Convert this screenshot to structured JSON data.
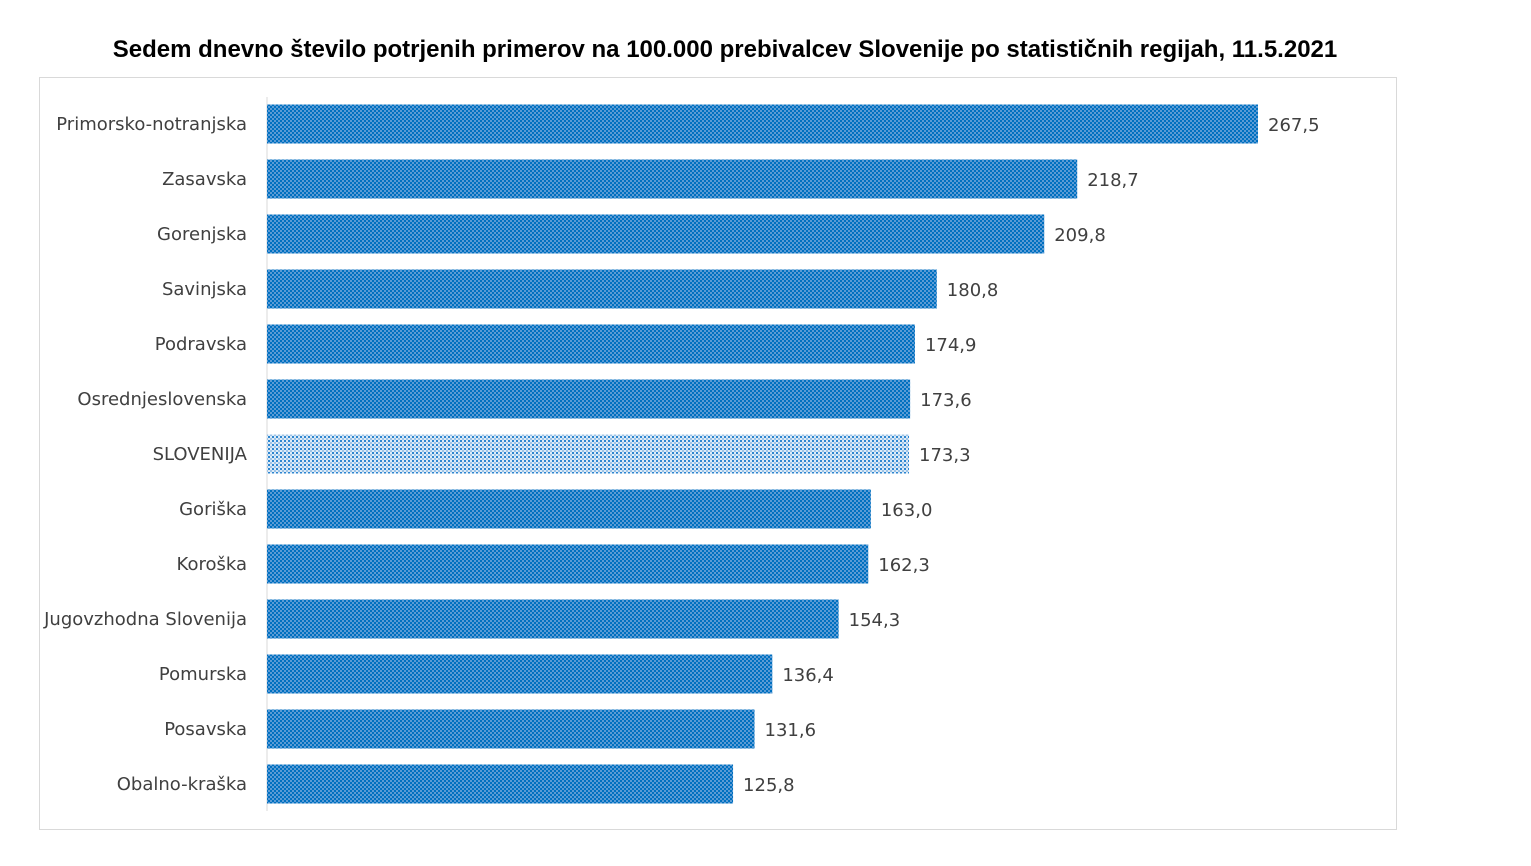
{
  "chart_data": {
    "type": "bar",
    "orientation": "horizontal",
    "title": "Sedem dnevno število potrjenih primerov na 100.000 prebivalcev Slovenije po statističnih regijah, 11.5.2021",
    "categories": [
      "Primorsko-notranjska",
      "Zasavska",
      "Gorenjska",
      "Savinjska",
      "Podravska",
      "Osrednjeslovenska",
      "SLOVENIJA",
      "Goriška",
      "Koroška",
      "Jugovzhodna Slovenija",
      "Pomurska",
      "Posavska",
      "Obalno-kraška"
    ],
    "values": [
      267.5,
      218.7,
      209.8,
      180.8,
      174.9,
      173.6,
      173.3,
      163.0,
      162.3,
      154.3,
      136.4,
      131.6,
      125.8
    ],
    "data_labels": [
      "267,5",
      "218,7",
      "209,8",
      "180,8",
      "174,9",
      "173,6",
      "173,3",
      "163,0",
      "162,3",
      "154,3",
      "136,4",
      "131,6",
      "125,8"
    ],
    "highlight": "SLOVENIJA",
    "xlim": [
      0,
      267.5
    ],
    "grid": false,
    "legend": "none",
    "colors": {
      "bar_fg": "#0070C0",
      "bar_bg": "#5B9BD5",
      "highlight_bg": "#DDEBF7"
    }
  }
}
